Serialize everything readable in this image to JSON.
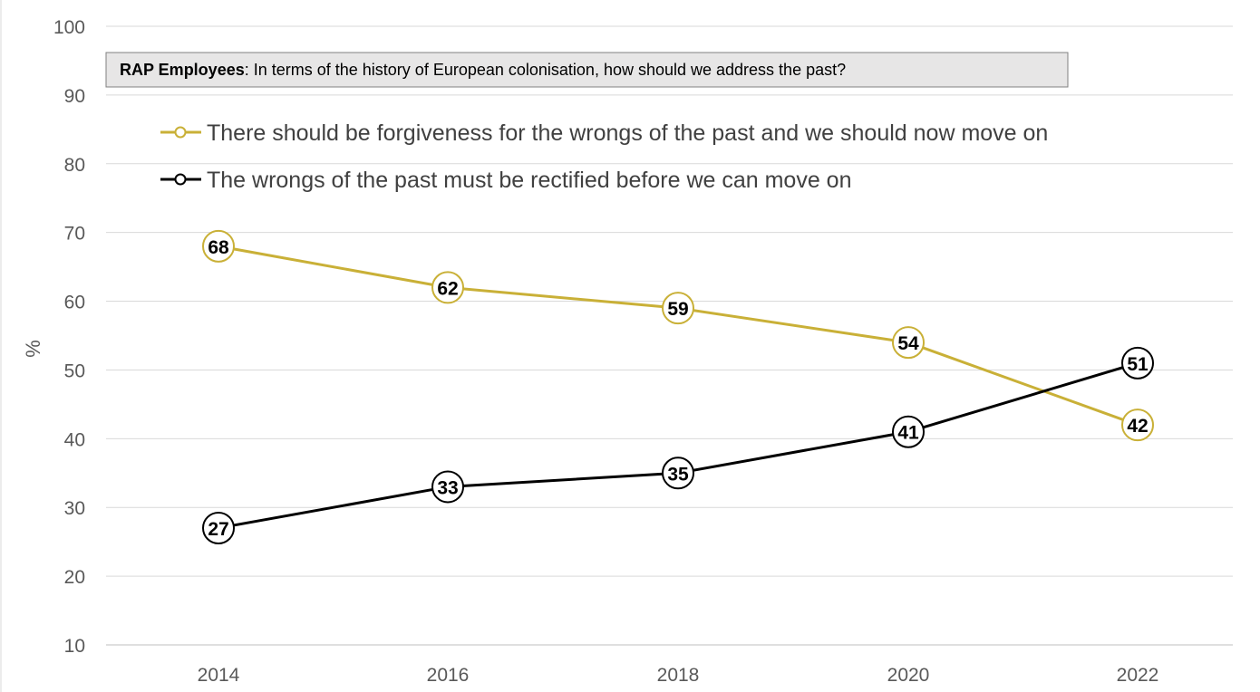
{
  "chart_data": {
    "type": "line",
    "title_bold": "RAP Employees",
    "title_rest": ": In terms of the history of European colonisation, how should we address the past?",
    "xlabel": "",
    "ylabel": "%",
    "x": [
      "2014",
      "2016",
      "2018",
      "2020",
      "2022"
    ],
    "yticks": [
      "10",
      "20",
      "30",
      "40",
      "50",
      "60",
      "70",
      "80",
      "90",
      "100"
    ],
    "ylim": [
      10,
      100
    ],
    "grid": "horizontal",
    "legend_position": "top-left",
    "series": [
      {
        "name": "There should be forgiveness for the wrongs of the past and we should now move on",
        "values": [
          68,
          62,
          59,
          54,
          42
        ],
        "color": "#C9B037"
      },
      {
        "name": "The wrongs of the past must be rectified before we can move on",
        "values": [
          27,
          33,
          35,
          41,
          51
        ],
        "color": "#000000"
      }
    ]
  }
}
